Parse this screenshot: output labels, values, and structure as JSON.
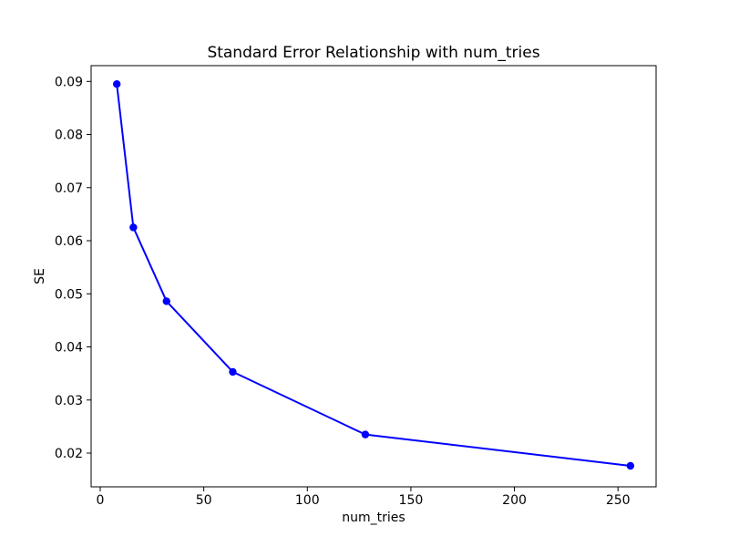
{
  "chart_data": {
    "type": "line",
    "title": "Standard Error Relationship with num_tries",
    "xlabel": "num_tries",
    "ylabel": "SE",
    "x": [
      8,
      16,
      32,
      64,
      128,
      256
    ],
    "y": [
      0.0895,
      0.0625,
      0.0486,
      0.0353,
      0.0235,
      0.0176
    ],
    "xticks": [
      0,
      50,
      100,
      150,
      200,
      250
    ],
    "yticks": [
      0.02,
      0.03,
      0.04,
      0.05,
      0.06,
      0.07,
      0.08,
      0.09
    ],
    "xlim": [
      -4.4,
      268.4
    ],
    "ylim": [
      0.01365,
      0.09297
    ],
    "grid": false,
    "legend": "none",
    "line_color": "#0000ff",
    "marker": "o",
    "axes_color": "#000000",
    "background": "#ffffff"
  }
}
